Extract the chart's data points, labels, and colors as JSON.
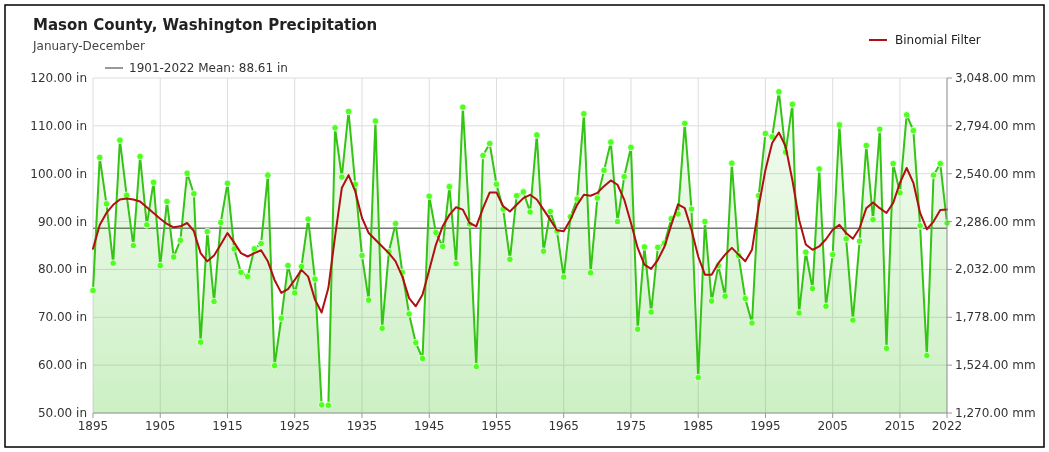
{
  "chart_data": {
    "type": "line",
    "title": "Mason County, Washington Precipitation",
    "subtitle": "January-December",
    "x": [
      1895,
      1896,
      1897,
      1898,
      1899,
      1900,
      1901,
      1902,
      1903,
      1904,
      1905,
      1906,
      1907,
      1908,
      1909,
      1910,
      1911,
      1912,
      1913,
      1914,
      1915,
      1916,
      1917,
      1918,
      1919,
      1920,
      1921,
      1922,
      1923,
      1924,
      1925,
      1926,
      1927,
      1928,
      1929,
      1930,
      1931,
      1932,
      1933,
      1934,
      1935,
      1936,
      1937,
      1938,
      1939,
      1940,
      1941,
      1942,
      1943,
      1944,
      1945,
      1946,
      1947,
      1948,
      1949,
      1950,
      1951,
      1952,
      1953,
      1954,
      1955,
      1956,
      1957,
      1958,
      1959,
      1960,
      1961,
      1962,
      1963,
      1964,
      1965,
      1966,
      1967,
      1968,
      1969,
      1970,
      1971,
      1972,
      1973,
      1974,
      1975,
      1976,
      1977,
      1978,
      1979,
      1980,
      1981,
      1982,
      1983,
      1984,
      1985,
      1986,
      1987,
      1988,
      1989,
      1990,
      1991,
      1992,
      1993,
      1994,
      1995,
      1996,
      1997,
      1998,
      1999,
      2000,
      2001,
      2002,
      2003,
      2004,
      2005,
      2006,
      2007,
      2008,
      2009,
      2010,
      2011,
      2012,
      2013,
      2014,
      2015,
      2016,
      2017,
      2018,
      2019,
      2020,
      2021,
      2022
    ],
    "series": [
      {
        "type": "area",
        "color": "#33c414",
        "marker": "circle",
        "values": [
          75.6,
          103.4,
          93.7,
          81.3,
          107.0,
          95.5,
          85.0,
          103.6,
          89.3,
          98.2,
          80.8,
          94.2,
          82.6,
          86.1,
          100.1,
          95.8,
          64.8,
          87.9,
          73.3,
          89.8,
          98.0,
          84.3,
          79.4,
          78.5,
          84.3,
          85.4,
          99.7,
          59.9,
          69.8,
          80.8,
          75.1,
          80.6,
          90.5,
          78.0,
          51.7,
          51.6,
          109.6,
          99.3,
          113.0,
          97.8,
          82.9,
          73.6,
          111.0,
          67.7,
          83.7,
          89.6,
          79.4,
          70.7,
          64.7,
          61.4,
          95.3,
          87.7,
          84.8,
          97.3,
          81.2,
          113.9,
          89.5,
          59.7,
          103.8,
          106.3,
          97.8,
          92.6,
          82.1,
          95.4,
          96.2,
          92.0,
          108.1,
          83.8,
          92.1,
          88.0,
          78.4,
          91.0,
          94.7,
          112.5,
          79.3,
          94.9,
          100.7,
          106.6,
          90.0,
          99.4,
          105.5,
          67.5,
          84.7,
          71.1,
          84.6,
          85.5,
          90.6,
          91.6,
          110.5,
          92.6,
          57.4,
          90.0,
          73.4,
          80.8,
          74.4,
          102.2,
          82.9,
          73.9,
          68.8,
          95.4,
          108.4,
          107.7,
          117.1,
          104.5,
          114.5,
          70.9,
          83.6,
          76.0,
          101.0,
          72.3,
          83.1,
          110.2,
          86.4,
          69.4,
          85.9,
          105.9,
          90.4,
          109.3,
          63.5,
          102.1,
          96.0,
          112.3,
          109.0,
          89.1,
          62.0,
          99.7,
          102.1,
          89.7
        ]
      },
      {
        "type": "line",
        "name": "Binomial Filter",
        "color": "#b01010",
        "marker": "none",
        "values": [
          84.3,
          89.3,
          91.8,
          93.5,
          94.6,
          94.8,
          94.6,
          94.2,
          93.0,
          91.8,
          90.6,
          89.5,
          88.8,
          89.0,
          89.7,
          88.0,
          83.4,
          81.7,
          82.9,
          85.2,
          87.6,
          85.6,
          83.4,
          82.7,
          83.4,
          84.0,
          81.7,
          77.8,
          75.1,
          75.9,
          77.8,
          79.9,
          78.5,
          73.7,
          71.0,
          76.1,
          86.9,
          97.0,
          99.7,
          96.3,
          90.8,
          87.6,
          86.2,
          84.8,
          83.4,
          81.7,
          78.5,
          74.0,
          72.3,
          74.7,
          79.9,
          85.2,
          89.0,
          91.4,
          93.0,
          92.5,
          89.7,
          89.0,
          92.8,
          96.1,
          96.1,
          93.2,
          92.1,
          93.5,
          94.9,
          95.6,
          94.6,
          92.5,
          90.4,
          88.2,
          88.0,
          90.4,
          93.5,
          95.6,
          95.4,
          96.0,
          97.4,
          98.6,
          97.7,
          94.6,
          89.7,
          84.5,
          81.0,
          80.1,
          82.0,
          84.8,
          89.3,
          93.6,
          92.8,
          88.3,
          82.7,
          78.9,
          78.9,
          81.3,
          83.1,
          84.5,
          83.1,
          81.7,
          84.1,
          93.2,
          100.8,
          106.4,
          108.6,
          105.7,
          98.7,
          90.4,
          85.2,
          84.1,
          84.8,
          86.3,
          88.3,
          89.3,
          87.6,
          86.4,
          88.6,
          92.8,
          94.0,
          92.8,
          91.8,
          93.9,
          98.1,
          101.2,
          98.1,
          91.8,
          88.4,
          90.0,
          92.4,
          92.5
        ]
      }
    ],
    "xlim": [
      1895,
      2022
    ],
    "xticks": [
      1895,
      1905,
      1915,
      1925,
      1935,
      1945,
      1955,
      1965,
      1975,
      1985,
      1995,
      2005,
      2015,
      2022
    ],
    "ylim": [
      50,
      120
    ],
    "yticks": [
      {
        "value": 50,
        "label": "50.00 in"
      },
      {
        "value": 60,
        "label": "60.00 in"
      },
      {
        "value": 70,
        "label": "70.00 in"
      },
      {
        "value": 80,
        "label": "80.00 in"
      },
      {
        "value": 90,
        "label": "90.00 in"
      },
      {
        "value": 100,
        "label": "100.00 in"
      },
      {
        "value": 110,
        "label": "110.00 in"
      },
      {
        "value": 120,
        "label": "120.00 in"
      }
    ],
    "y2lim": [
      1270,
      3048
    ],
    "y2ticks": [
      {
        "value": 1270,
        "label": "1,270.00 mm"
      },
      {
        "value": 1524,
        "label": "1,524.00 mm"
      },
      {
        "value": 1778,
        "label": "1,778.00 mm"
      },
      {
        "value": 2032,
        "label": "2,032.00 mm"
      },
      {
        "value": 2286,
        "label": "2,286.00 mm"
      },
      {
        "value": 2540,
        "label": "2,540.00 mm"
      },
      {
        "value": 2794,
        "label": "2,794.00 mm"
      },
      {
        "value": 3048,
        "label": "3,048.00 mm"
      }
    ],
    "ref_lines": [
      {
        "axis": "y",
        "value": 88.61,
        "label": "1901-2022 Mean: 88.61 in",
        "color": "#777777"
      }
    ],
    "grid": true,
    "legend": "top right"
  }
}
